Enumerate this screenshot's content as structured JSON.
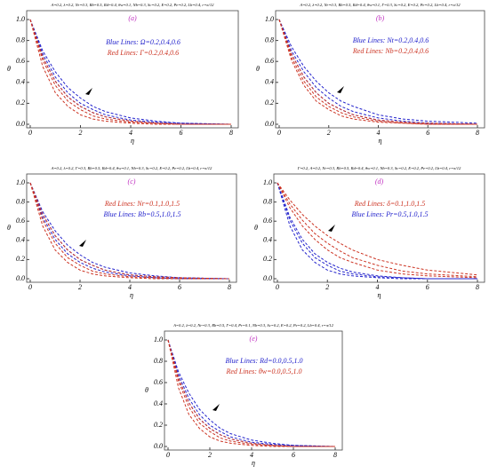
{
  "chart_data": [
    {
      "type": "line",
      "title": "A=0.2, λ=0.2, Nr=0.3, Rb=0.5, Rd=0.4, θw=0.1, Nb=0.3, Sc=0.2, E=0.2, Pe=0.2, Lb=0.4, r=π/12",
      "panel": "(a)",
      "annotations": [
        {
          "text": "Blue Lines: Ω=0.2,0.4,0.6",
          "color": "#2222cc"
        },
        {
          "text": "Red Lines: Γ=0.2,0.4,0.6",
          "color": "#cc3322"
        }
      ],
      "xlabel": "η",
      "ylabel": "θ",
      "x": [
        0,
        0.5,
        1,
        1.5,
        2,
        2.5,
        3,
        4,
        5,
        6,
        8
      ],
      "xlim": [
        0,
        8
      ],
      "ylim": [
        0,
        1
      ],
      "xticks": [
        0,
        2,
        4,
        6,
        8
      ],
      "yticks": [
        {
          "value": 0,
          "label": "0.0"
        },
        0.2,
        0.4,
        0.6,
        0.8,
        {
          "value": 1,
          "label": "1.0"
        }
      ],
      "series": [
        {
          "color": "#2222cc",
          "values": [
            1,
            0.7,
            0.5,
            0.35,
            0.25,
            0.17,
            0.12,
            0.06,
            0.03,
            0.01,
            0
          ]
        },
        {
          "color": "#2222cc",
          "values": [
            1,
            0.67,
            0.45,
            0.3,
            0.2,
            0.14,
            0.09,
            0.04,
            0.02,
            0.01,
            0
          ]
        },
        {
          "color": "#2222cc",
          "values": [
            1,
            0.64,
            0.41,
            0.26,
            0.17,
            0.11,
            0.07,
            0.03,
            0.01,
            0,
            0
          ]
        },
        {
          "color": "#cc3322",
          "values": [
            1,
            0.64,
            0.41,
            0.26,
            0.17,
            0.11,
            0.07,
            0.03,
            0.01,
            0,
            0
          ]
        },
        {
          "color": "#cc3322",
          "values": [
            1,
            0.61,
            0.37,
            0.22,
            0.14,
            0.08,
            0.05,
            0.02,
            0.01,
            0,
            0
          ]
        },
        {
          "color": "#cc3322",
          "values": [
            1,
            0.55,
            0.3,
            0.17,
            0.09,
            0.05,
            0.03,
            0.01,
            0,
            0,
            0
          ]
        }
      ]
    },
    {
      "type": "line",
      "title": "A=0.2, λ=0.2, Nr=0.3, Rb=0.5, Rd=0.4, θw=0.1, Γ=0.3, Sc=0.2, E=0.2, Pe=0.2, Lb=0.4, r=π/12",
      "panel": "(b)",
      "annotations": [
        {
          "text": "Blue Lines: Nt=0.2,0.4,0.6",
          "color": "#2222cc"
        },
        {
          "text": "Red Lines: Nb=0.2,0.4,0.6",
          "color": "#cc3322"
        }
      ],
      "xlabel": "η",
      "ylabel": "θ",
      "x": [
        0,
        0.5,
        1,
        1.5,
        2,
        2.5,
        3,
        4,
        5,
        6,
        8
      ],
      "xlim": [
        0,
        8
      ],
      "ylim": [
        0,
        1
      ],
      "xticks": [
        0,
        2,
        4,
        6,
        8
      ],
      "yticks": [
        {
          "value": 0,
          "label": "0.0"
        },
        0.2,
        0.4,
        0.6,
        0.8,
        {
          "value": 1,
          "label": "1.0"
        }
      ],
      "series": [
        {
          "color": "#2222cc",
          "values": [
            1,
            0.74,
            0.55,
            0.41,
            0.3,
            0.22,
            0.17,
            0.09,
            0.05,
            0.03,
            0.01
          ]
        },
        {
          "color": "#2222cc",
          "values": [
            1,
            0.7,
            0.5,
            0.35,
            0.25,
            0.17,
            0.12,
            0.06,
            0.03,
            0.01,
            0
          ]
        },
        {
          "color": "#2222cc",
          "values": [
            1,
            0.67,
            0.45,
            0.3,
            0.2,
            0.14,
            0.09,
            0.04,
            0.02,
            0.01,
            0
          ]
        },
        {
          "color": "#cc3322",
          "values": [
            1,
            0.67,
            0.45,
            0.3,
            0.2,
            0.14,
            0.09,
            0.04,
            0.02,
            0.01,
            0
          ]
        },
        {
          "color": "#cc3322",
          "values": [
            1,
            0.64,
            0.41,
            0.26,
            0.17,
            0.11,
            0.07,
            0.03,
            0.01,
            0,
            0
          ]
        },
        {
          "color": "#cc3322",
          "values": [
            1,
            0.61,
            0.37,
            0.22,
            0.14,
            0.08,
            0.05,
            0.02,
            0.01,
            0,
            0
          ]
        }
      ]
    },
    {
      "type": "line",
      "title": "A=0.2, λ=0.2, Γ=0.3, Rb=0.5, Rd=0.4, θw=0.1, Nb=0.3, Sc=0.2, E=0.2, Pe=0.2, Lb=0.4, r=π/12",
      "panel": "(c)",
      "annotations": [
        {
          "text": "Red Lines: Nr=0.1,1.0,1.5",
          "color": "#cc3322"
        },
        {
          "text": "Blue Lines: Rb=0.5,1.0,1.5",
          "color": "#2222cc"
        }
      ],
      "xlabel": "η",
      "ylabel": "θ",
      "x": [
        0,
        0.5,
        1,
        1.5,
        2,
        2.5,
        3,
        4,
        5,
        6,
        8
      ],
      "xlim": [
        0,
        8
      ],
      "ylim": [
        0,
        1
      ],
      "xticks": [
        0,
        2,
        4,
        6,
        8
      ],
      "yticks": [
        {
          "value": 0,
          "label": "0.0"
        },
        0.2,
        0.4,
        0.6,
        0.8,
        {
          "value": 1,
          "label": "1.0"
        }
      ],
      "series": [
        {
          "color": "#2222cc",
          "values": [
            1,
            0.7,
            0.5,
            0.35,
            0.25,
            0.17,
            0.12,
            0.06,
            0.03,
            0.01,
            0
          ]
        },
        {
          "color": "#2222cc",
          "values": [
            1,
            0.67,
            0.45,
            0.3,
            0.2,
            0.14,
            0.09,
            0.04,
            0.02,
            0.01,
            0
          ]
        },
        {
          "color": "#2222cc",
          "values": [
            1,
            0.64,
            0.41,
            0.26,
            0.17,
            0.11,
            0.07,
            0.03,
            0.01,
            0,
            0
          ]
        },
        {
          "color": "#cc3322",
          "values": [
            1,
            0.67,
            0.45,
            0.3,
            0.2,
            0.14,
            0.09,
            0.04,
            0.02,
            0.01,
            0
          ]
        },
        {
          "color": "#cc3322",
          "values": [
            1,
            0.61,
            0.37,
            0.22,
            0.14,
            0.08,
            0.05,
            0.02,
            0.01,
            0,
            0
          ]
        },
        {
          "color": "#cc3322",
          "values": [
            1,
            0.55,
            0.3,
            0.17,
            0.09,
            0.05,
            0.03,
            0.01,
            0,
            0,
            0
          ]
        }
      ]
    },
    {
      "type": "line",
      "title": "Γ=0.2, A=0.2, Nr=0.3, Rb=0.5, Rd=0.4, θw=0.1, Nb=0.3, Sc=0.2, E=0.2, Pe=0.2, Lb=0.4, r=π/12",
      "panel": "(d)",
      "annotations": [
        {
          "text": "Red Lines: δ=0.1,1.0,1.5",
          "color": "#cc3322"
        },
        {
          "text": "Blue Lines: Pr=0.5,1.0,1.5",
          "color": "#2222cc"
        }
      ],
      "xlabel": "η",
      "ylabel": "θ",
      "x": [
        0,
        0.5,
        1,
        1.5,
        2,
        2.5,
        3,
        4,
        5,
        6,
        8
      ],
      "xlim": [
        0,
        8
      ],
      "ylim": [
        0,
        1
      ],
      "xticks": [
        0,
        2,
        4,
        6,
        8
      ],
      "yticks": [
        {
          "value": 0,
          "label": "0.0"
        },
        0.2,
        0.4,
        0.6,
        0.8,
        {
          "value": 1,
          "label": "1.0"
        }
      ],
      "series": [
        {
          "color": "#2222cc",
          "values": [
            1,
            0.64,
            0.41,
            0.26,
            0.17,
            0.11,
            0.07,
            0.03,
            0.01,
            0,
            0
          ]
        },
        {
          "color": "#2222cc",
          "values": [
            1,
            0.61,
            0.37,
            0.22,
            0.14,
            0.08,
            0.05,
            0.02,
            0.01,
            0,
            0
          ]
        },
        {
          "color": "#2222cc",
          "values": [
            1,
            0.55,
            0.3,
            0.17,
            0.09,
            0.05,
            0.03,
            0.01,
            0,
            0,
            0
          ]
        },
        {
          "color": "#cc3322",
          "values": [
            1,
            0.82,
            0.67,
            0.55,
            0.45,
            0.37,
            0.3,
            0.2,
            0.14,
            0.09,
            0.04
          ]
        },
        {
          "color": "#cc3322",
          "values": [
            1,
            0.78,
            0.61,
            0.47,
            0.37,
            0.29,
            0.22,
            0.14,
            0.08,
            0.05,
            0.02
          ]
        },
        {
          "color": "#cc3322",
          "values": [
            1,
            0.74,
            0.55,
            0.41,
            0.3,
            0.22,
            0.17,
            0.09,
            0.05,
            0.03,
            0.01
          ]
        }
      ]
    },
    {
      "type": "line",
      "title": "A=0.2, λ=0.2, Nr=0.3, Rb=0.5, Γ=0.4, Pr=0.1, Nb=0.3, Sc=0.2, E=0.2, Pe=0.2, Lb=0.4, r=π/12",
      "panel": "(e)",
      "annotations": [
        {
          "text": "Blue Lines: Rd=0.0,0.5,1.0",
          "color": "#2222cc"
        },
        {
          "text": "Red Lines: θw=0.0,0.5,1.0",
          "color": "#cc3322"
        }
      ],
      "xlabel": "η",
      "ylabel": "θ",
      "x": [
        0,
        0.5,
        1,
        1.5,
        2,
        2.5,
        3,
        4,
        5,
        6,
        8
      ],
      "xlim": [
        0,
        8
      ],
      "ylim": [
        0,
        1
      ],
      "xticks": [
        0,
        2,
        4,
        6,
        8
      ],
      "yticks": [
        {
          "value": 0,
          "label": "0.0"
        },
        0.2,
        0.4,
        0.6,
        0.8,
        {
          "value": 1,
          "label": "1.0"
        }
      ],
      "series": [
        {
          "color": "#2222cc",
          "values": [
            1,
            0.7,
            0.5,
            0.35,
            0.25,
            0.17,
            0.12,
            0.06,
            0.03,
            0.01,
            0
          ]
        },
        {
          "color": "#2222cc",
          "values": [
            1,
            0.67,
            0.45,
            0.3,
            0.2,
            0.14,
            0.09,
            0.04,
            0.02,
            0.01,
            0
          ]
        },
        {
          "color": "#2222cc",
          "values": [
            1,
            0.64,
            0.41,
            0.26,
            0.17,
            0.11,
            0.07,
            0.03,
            0.01,
            0,
            0
          ]
        },
        {
          "color": "#cc3322",
          "values": [
            1,
            0.64,
            0.41,
            0.26,
            0.17,
            0.11,
            0.07,
            0.03,
            0.01,
            0,
            0
          ]
        },
        {
          "color": "#cc3322",
          "values": [
            1,
            0.61,
            0.37,
            0.22,
            0.14,
            0.08,
            0.05,
            0.02,
            0.01,
            0,
            0
          ]
        },
        {
          "color": "#cc3322",
          "values": [
            1,
            0.55,
            0.3,
            0.17,
            0.09,
            0.05,
            0.03,
            0.01,
            0,
            0,
            0
          ]
        }
      ]
    }
  ]
}
